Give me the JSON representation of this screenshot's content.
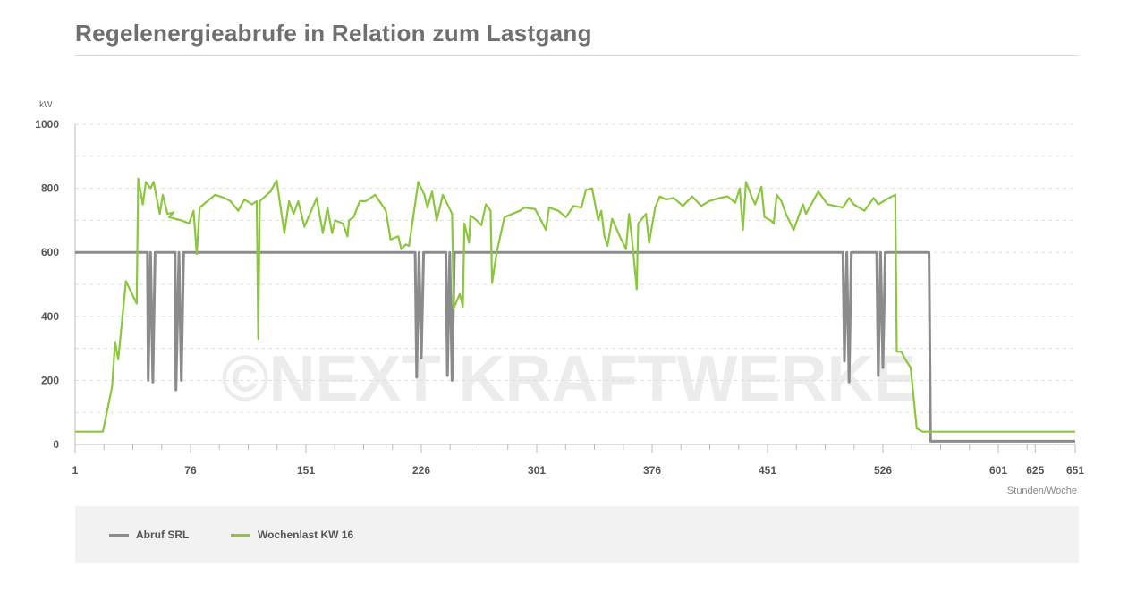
{
  "header": {
    "title": "Regelenergieabrufe in Relation zum Lastgang"
  },
  "watermark": "©NEXT KRAFTWERKE",
  "colors": {
    "srl": "#8a8b8c",
    "load": "#8cc63f",
    "grid": "#dddddd",
    "axis": "#bbbbbb"
  },
  "chart_data": {
    "type": "line",
    "title": "Regelenergieabrufe in Relation zum Lastgang",
    "ylabel": "kW",
    "xlabel": "Stunden/Woche",
    "ylim": [
      0,
      1000
    ],
    "y_ticks": [
      "0",
      "200",
      "400",
      "600",
      "800",
      "1000"
    ],
    "x_tick_values": [
      1,
      76,
      151,
      226,
      301,
      376,
      451,
      526,
      601,
      625,
      651
    ],
    "x_tick_labels": [
      "1",
      "76",
      "151",
      "226",
      "301",
      "376",
      "451",
      "526",
      "601",
      "625",
      "651"
    ],
    "series": [
      {
        "name": "Abruf SRL",
        "points": [
          [
            1,
            600
          ],
          [
            48,
            600
          ],
          [
            48.5,
            200
          ],
          [
            50,
            600
          ],
          [
            51.5,
            195
          ],
          [
            53,
            600
          ],
          [
            66,
            600
          ],
          [
            66.5,
            170
          ],
          [
            68.5,
            600
          ],
          [
            70,
            200
          ],
          [
            71.5,
            600
          ],
          [
            222,
            600
          ],
          [
            223,
            210
          ],
          [
            224.5,
            600
          ],
          [
            226,
            270
          ],
          [
            227.5,
            600
          ],
          [
            242,
            600
          ],
          [
            243,
            215
          ],
          [
            244.5,
            600
          ],
          [
            246,
            200
          ],
          [
            247.5,
            600
          ],
          [
            500,
            600
          ],
          [
            501,
            260
          ],
          [
            502.5,
            600
          ],
          [
            504,
            195
          ],
          [
            505.5,
            600
          ],
          [
            522,
            600
          ],
          [
            523,
            215
          ],
          [
            524.5,
            600
          ],
          [
            526,
            240
          ],
          [
            527.5,
            600
          ],
          [
            556,
            600
          ],
          [
            557,
            10
          ],
          [
            651,
            10
          ]
        ]
      },
      {
        "name": "Wochenlast KW 16",
        "points": [
          [
            1,
            40
          ],
          [
            19,
            40
          ],
          [
            25,
            180
          ],
          [
            27,
            320
          ],
          [
            29,
            265
          ],
          [
            34,
            510
          ],
          [
            41,
            440
          ],
          [
            42,
            830
          ],
          [
            45,
            750
          ],
          [
            47,
            820
          ],
          [
            50,
            800
          ],
          [
            52,
            820
          ],
          [
            56,
            720
          ],
          [
            58,
            780
          ],
          [
            61,
            720
          ],
          [
            65,
            725
          ],
          [
            62,
            710
          ],
          [
            70,
            700
          ],
          [
            75,
            690
          ],
          [
            78,
            730
          ],
          [
            80,
            595
          ],
          [
            82,
            740
          ],
          [
            87,
            760
          ],
          [
            92,
            780
          ],
          [
            98,
            770
          ],
          [
            102,
            760
          ],
          [
            107,
            730
          ],
          [
            111,
            765
          ],
          [
            116,
            750
          ],
          [
            119,
            760
          ],
          [
            120,
            330
          ],
          [
            121,
            760
          ],
          [
            128,
            790
          ],
          [
            132,
            825
          ],
          [
            137,
            660
          ],
          [
            140,
            760
          ],
          [
            143,
            720
          ],
          [
            146,
            760
          ],
          [
            150,
            680
          ],
          [
            158,
            770
          ],
          [
            162,
            660
          ],
          [
            165,
            740
          ],
          [
            168,
            660
          ],
          [
            170,
            700
          ],
          [
            175,
            690
          ],
          [
            178,
            650
          ],
          [
            179,
            700
          ],
          [
            182,
            710
          ],
          [
            186,
            760
          ],
          [
            190,
            760
          ],
          [
            196,
            780
          ],
          [
            203,
            730
          ],
          [
            206,
            640
          ],
          [
            211,
            650
          ],
          [
            213,
            610
          ],
          [
            216,
            625
          ],
          [
            218,
            620
          ],
          [
            224,
            820
          ],
          [
            228,
            780
          ],
          [
            230,
            740
          ],
          [
            233,
            790
          ],
          [
            236,
            700
          ],
          [
            240,
            780
          ],
          [
            246,
            720
          ],
          [
            247,
            425
          ],
          [
            251,
            470
          ],
          [
            253,
            430
          ],
          [
            254,
            690
          ],
          [
            257,
            630
          ],
          [
            258,
            715
          ],
          [
            262,
            700
          ],
          [
            265,
            685
          ],
          [
            268,
            750
          ],
          [
            271,
            730
          ],
          [
            272,
            505
          ],
          [
            275,
            600
          ],
          [
            280,
            710
          ],
          [
            290,
            730
          ],
          [
            293,
            740
          ],
          [
            300,
            735
          ],
          [
            307,
            670
          ],
          [
            309,
            740
          ],
          [
            315,
            730
          ],
          [
            320,
            710
          ],
          [
            325,
            745
          ],
          [
            330,
            740
          ],
          [
            333,
            795
          ],
          [
            337,
            800
          ],
          [
            341,
            700
          ],
          [
            343,
            730
          ],
          [
            345,
            650
          ],
          [
            347,
            620
          ],
          [
            350,
            705
          ],
          [
            355,
            650
          ],
          [
            359,
            610
          ],
          [
            361,
            720
          ],
          [
            363,
            640
          ],
          [
            366,
            485
          ],
          [
            367,
            690
          ],
          [
            372,
            720
          ],
          [
            374,
            630
          ],
          [
            378,
            740
          ],
          [
            381,
            775
          ],
          [
            385,
            765
          ],
          [
            390,
            770
          ],
          [
            396,
            745
          ],
          [
            402,
            775
          ],
          [
            408,
            745
          ],
          [
            413,
            760
          ],
          [
            420,
            770
          ],
          [
            425,
            775
          ],
          [
            430,
            755
          ],
          [
            433,
            800
          ],
          [
            435,
            670
          ],
          [
            437,
            820
          ],
          [
            441,
            770
          ],
          [
            443,
            750
          ],
          [
            447,
            805
          ],
          [
            449,
            710
          ],
          [
            453,
            700
          ],
          [
            455,
            690
          ],
          [
            457,
            780
          ],
          [
            460,
            760
          ],
          [
            463,
            720
          ],
          [
            468,
            670
          ],
          [
            474,
            750
          ],
          [
            476,
            720
          ],
          [
            484,
            790
          ],
          [
            490,
            750
          ],
          [
            495,
            745
          ],
          [
            500,
            740
          ],
          [
            504,
            770
          ],
          [
            507,
            750
          ],
          [
            514,
            730
          ],
          [
            520,
            770
          ],
          [
            523,
            750
          ],
          [
            530,
            770
          ],
          [
            534,
            780
          ],
          [
            535,
            290
          ],
          [
            538,
            290
          ],
          [
            540,
            270
          ],
          [
            544,
            240
          ],
          [
            548,
            50
          ],
          [
            552,
            40
          ],
          [
            560,
            40
          ],
          [
            651,
            40
          ]
        ]
      }
    ]
  },
  "legend": {
    "items": [
      {
        "label": "Abruf SRL",
        "color": "#8a8b8c"
      },
      {
        "label": "Wochenlast KW 16",
        "color": "#8cc63f"
      }
    ]
  }
}
